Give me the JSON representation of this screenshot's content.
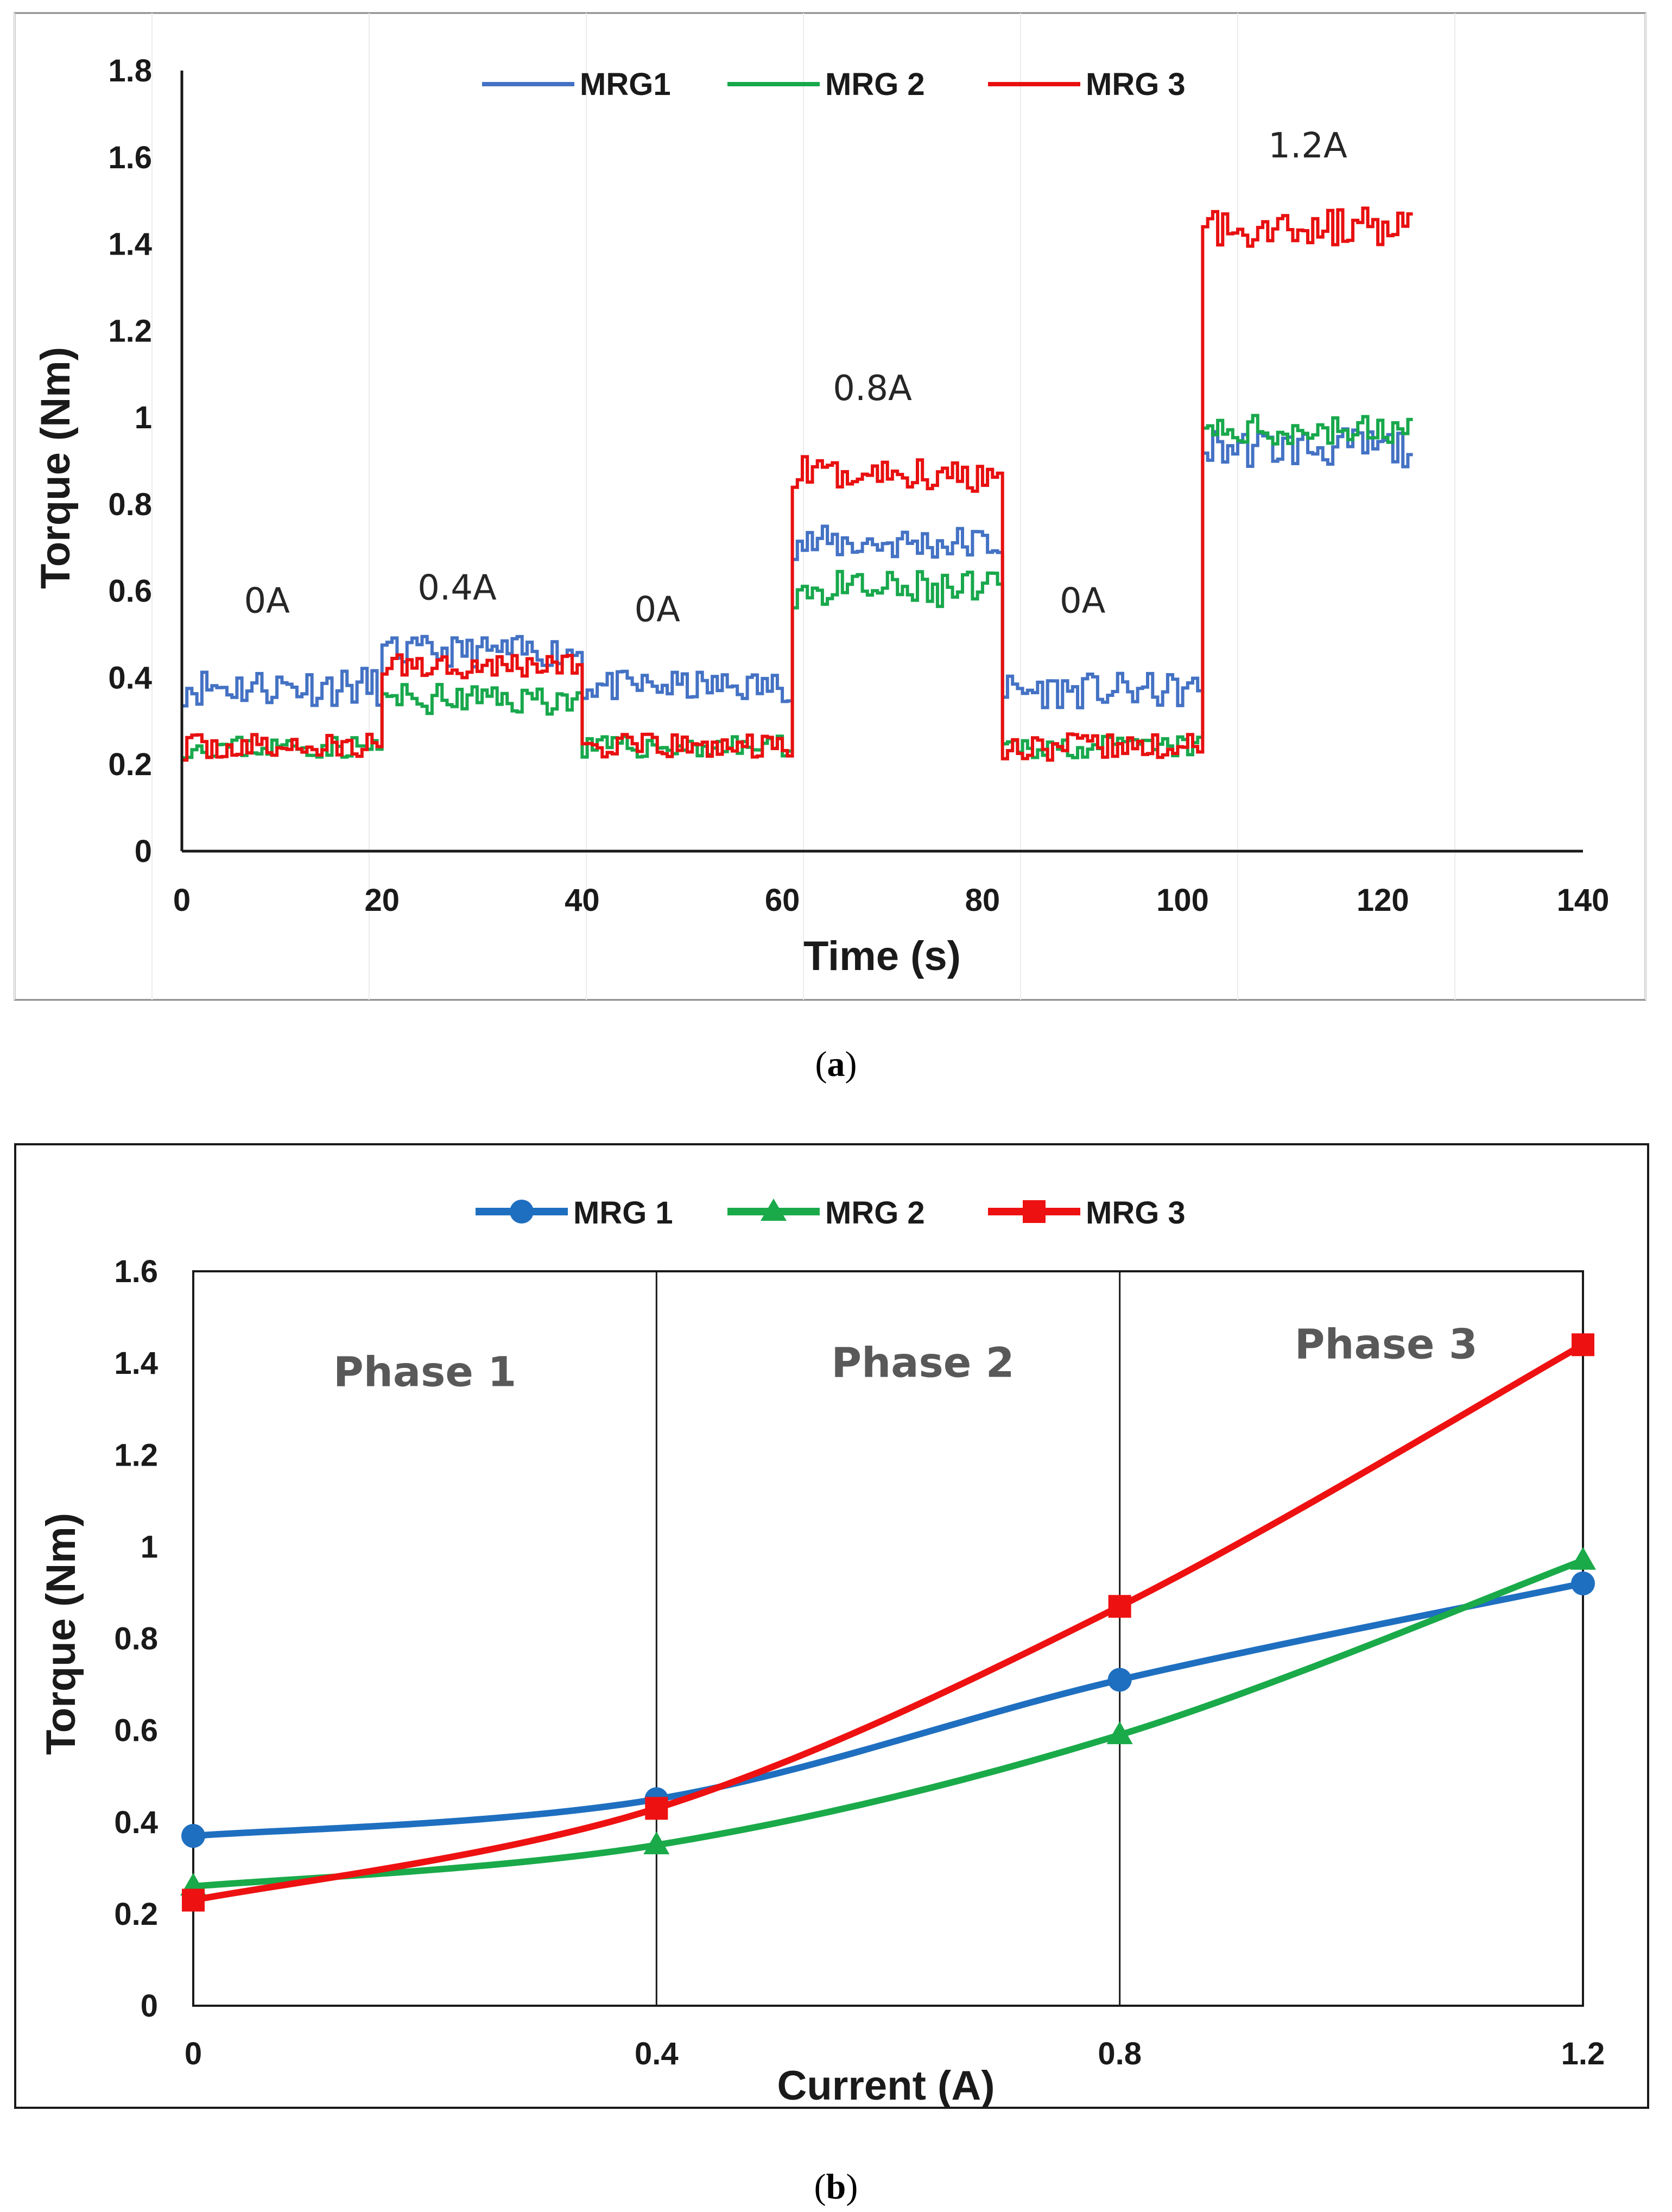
{
  "chart_data": [
    {
      "id": "a",
      "type": "line",
      "caption": "(a)",
      "caption_letter": "a",
      "xlabel": "Time (s)",
      "ylabel": "Torque (Nm)",
      "xlim": [
        0,
        140
      ],
      "ylim": [
        0,
        1.8
      ],
      "xticks": [
        "0",
        "20",
        "40",
        "60",
        "80",
        "100",
        "120",
        "140"
      ],
      "yticks": [
        "0",
        "0.2",
        "0.4",
        "0.6",
        "0.8",
        "1",
        "1.2",
        "1.4",
        "1.6",
        "1.8"
      ],
      "legend_position": "top-center",
      "annotations": [
        {
          "text": "0A",
          "x": 8.5,
          "y": 0.55
        },
        {
          "text": "0.4A",
          "x": 27.5,
          "y": 0.58
        },
        {
          "text": "0A",
          "x": 47.5,
          "y": 0.53
        },
        {
          "text": "0.8A",
          "x": 69,
          "y": 1.04
        },
        {
          "text": "0A",
          "x": 90,
          "y": 0.55
        },
        {
          "text": "1.2A",
          "x": 112.5,
          "y": 1.6
        }
      ],
      "segments": [
        {
          "current": "0A",
          "t_start": 0,
          "t_end": 20
        },
        {
          "current": "0.4A",
          "t_start": 20,
          "t_end": 40
        },
        {
          "current": "0A",
          "t_start": 40,
          "t_end": 61
        },
        {
          "current": "0.8A",
          "t_start": 61,
          "t_end": 82
        },
        {
          "current": "0A",
          "t_start": 82,
          "t_end": 102
        },
        {
          "current": "1.2A",
          "t_start": 102,
          "t_end": 123
        }
      ],
      "series": [
        {
          "name": "MRG1",
          "color": "#4472c4",
          "seed": 11,
          "levels": [
            0.38,
            0.46,
            0.38,
            0.71,
            0.37,
            0.93
          ],
          "noise": [
            0.045,
            0.035,
            0.035,
            0.04,
            0.04,
            0.045
          ]
        },
        {
          "name": "MRG 2",
          "color": "#18a84c",
          "seed": 23,
          "levels": [
            0.24,
            0.35,
            0.24,
            0.6,
            0.24,
            0.97
          ],
          "noise": [
            0.025,
            0.035,
            0.025,
            0.045,
            0.025,
            0.035
          ]
        },
        {
          "name": "MRG 3",
          "color": "#e81010",
          "seed": 37,
          "levels": [
            0.24,
            0.43,
            0.24,
            0.87,
            0.24,
            1.44
          ],
          "noise": [
            0.03,
            0.03,
            0.03,
            0.04,
            0.03,
            0.045
          ]
        }
      ]
    },
    {
      "id": "b",
      "type": "line",
      "caption": "(b)",
      "caption_letter": "b",
      "xlabel": "Current (A)",
      "ylabel": "Torque (Nm)",
      "xlim": [
        0,
        1.2
      ],
      "ylim": [
        0,
        1.6
      ],
      "x": [
        0,
        0.4,
        0.8,
        1.2
      ],
      "xticks": [
        "0",
        "0.4",
        "0.8",
        "1.2"
      ],
      "yticks": [
        "0",
        "0.2",
        "0.4",
        "0.6",
        "0.8",
        "1",
        "1.2",
        "1.4",
        "1.6"
      ],
      "legend_position": "top-center",
      "phases": [
        {
          "label": "Phase 1",
          "x": 0.2,
          "y": 1.35
        },
        {
          "label": "Phase 2",
          "x": 0.63,
          "y": 1.37
        },
        {
          "label": "Phase 3",
          "x": 1.03,
          "y": 1.41
        }
      ],
      "series": [
        {
          "name": "MRG 1",
          "color": "#1f6fc0",
          "marker": "circle",
          "values": [
            0.37,
            0.45,
            0.71,
            0.92
          ]
        },
        {
          "name": "MRG 2",
          "color": "#1aaa4a",
          "marker": "triangle",
          "values": [
            0.26,
            0.35,
            0.59,
            0.97
          ]
        },
        {
          "name": "MRG 3",
          "color": "#ee1111",
          "marker": "square",
          "values": [
            0.23,
            0.43,
            0.87,
            1.44
          ]
        }
      ]
    }
  ]
}
